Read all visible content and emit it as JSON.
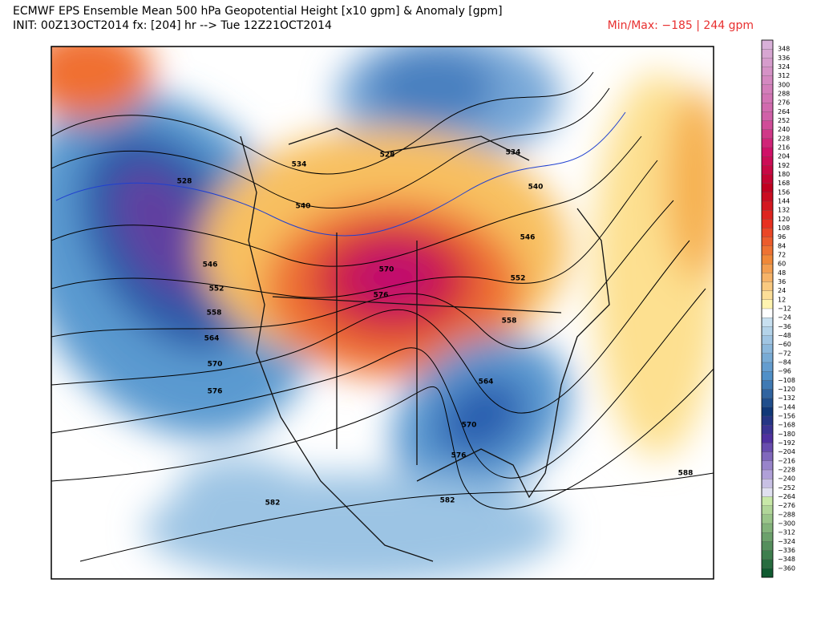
{
  "header": {
    "title": "ECMWF EPS Ensemble Mean 500 hPa Geopotential Height [x10 gpm] & Anomaly [gpm]",
    "init": "INIT: 00Z13OCT2014 fx: [204] hr --> Tue 12Z21OCT2014",
    "minmax": "Min/Max:  −185 |  244 gpm"
  },
  "contour_labels": [
    "528",
    "534",
    "540",
    "546",
    "552",
    "558",
    "564",
    "570",
    "576",
    "582",
    "576",
    "570",
    "528",
    "534",
    "540",
    "546",
    "552",
    "558",
    "564",
    "570",
    "576",
    "582",
    "588"
  ],
  "colorbar": {
    "labels": [
      "348",
      "336",
      "324",
      "312",
      "300",
      "288",
      "276",
      "264",
      "252",
      "240",
      "228",
      "216",
      "204",
      "192",
      "180",
      "168",
      "156",
      "144",
      "132",
      "120",
      "108",
      "96",
      "84",
      "72",
      "60",
      "48",
      "36",
      "24",
      "12",
      "−12",
      "−24",
      "−36",
      "−48",
      "−60",
      "−72",
      "−84",
      "−96",
      "−108",
      "−120",
      "−132",
      "−144",
      "−156",
      "−168",
      "−180",
      "−192",
      "−204",
      "−216",
      "−228",
      "−240",
      "−252",
      "−264",
      "−276",
      "−288",
      "−300",
      "−312",
      "−324",
      "−336",
      "−348",
      "−360"
    ]
  }
}
